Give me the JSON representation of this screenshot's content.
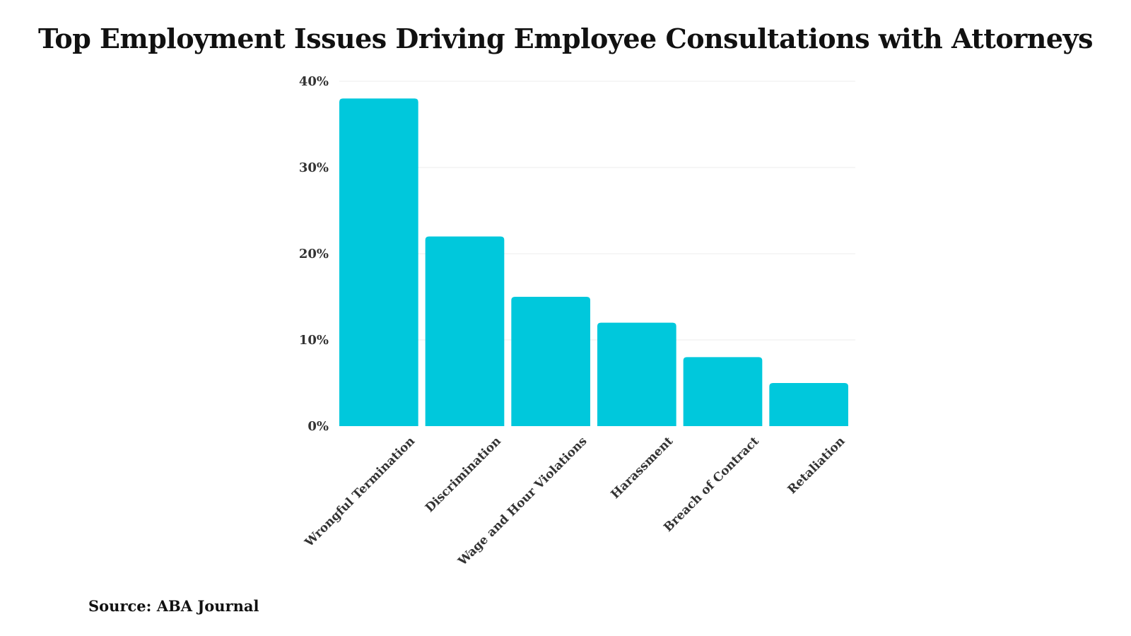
{
  "title": "Top Employment Issues Driving Employee Consultations with Attorneys",
  "source": "Source: ABA Journal",
  "chart_data": {
    "type": "bar",
    "title": "Top Employment Issues Driving Employee Consultations with Attorneys",
    "xlabel": "",
    "ylabel": "",
    "categories": [
      "Wrongful Termination",
      "Discrimination",
      "Wage and Hour Violations",
      "Harassment",
      "Breach of Contract",
      "Retaliation"
    ],
    "values": [
      38,
      22,
      15,
      12,
      8,
      5
    ],
    "unit": "%",
    "ylim": [
      0,
      40
    ],
    "yticks": [
      0,
      10,
      20,
      30,
      40
    ],
    "ytick_labels": [
      "0%",
      "10%",
      "20%",
      "30%",
      "40%"
    ],
    "grid": true,
    "legend": "none",
    "bar_color": "#00c8dc",
    "label_rotation": -45
  }
}
